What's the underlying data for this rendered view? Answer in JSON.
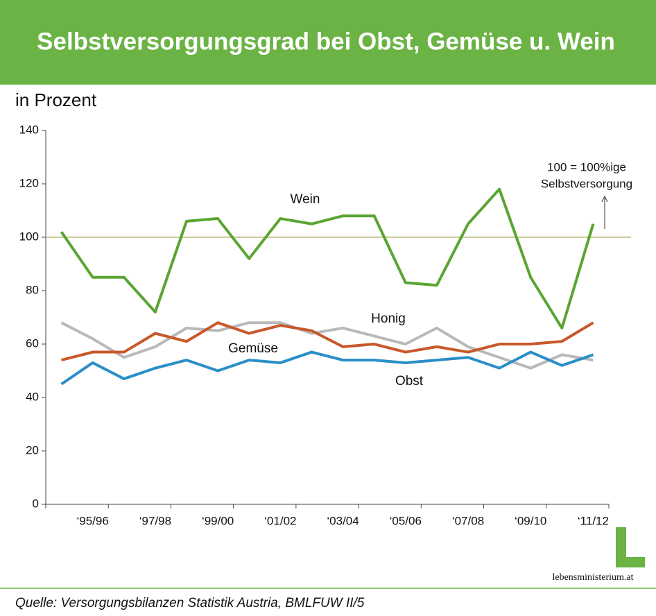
{
  "header": {
    "title": "Selbstversorgungsgrad bei Obst, Gemüse u. Wein"
  },
  "chart_data": {
    "type": "line",
    "subtitle": "in Prozent",
    "categories": [
      null,
      "‘95/96",
      null,
      "‘97/98",
      null,
      "‘99/00",
      null,
      "‘01/02",
      null,
      "‘03/04",
      null,
      "‘05/06",
      null,
      "‘07/08",
      null,
      "‘09/10",
      null,
      "‘11/12"
    ],
    "series": [
      {
        "name": "Wein",
        "color": "#5aa532",
        "values": [
          102,
          85,
          85,
          72,
          106,
          107,
          92,
          107,
          105,
          108,
          108,
          83,
          82,
          105,
          118,
          85,
          66,
          105
        ]
      },
      {
        "name": "Honig",
        "color": "#b9b9b9",
        "values": [
          68,
          62,
          55,
          59,
          66,
          65,
          68,
          68,
          64,
          66,
          63,
          60,
          66,
          59,
          55,
          51,
          56,
          54
        ]
      },
      {
        "name": "Gemüse",
        "color": "#c8582a",
        "values": [
          54,
          57,
          57,
          64,
          61,
          68,
          64,
          67,
          65,
          59,
          60,
          57,
          59,
          57,
          60,
          60,
          61,
          68
        ]
      },
      {
        "name": "Obst",
        "color": "#2a8fc8",
        "values": [
          45,
          53,
          47,
          51,
          54,
          50,
          54,
          53,
          57,
          54,
          54,
          53,
          54,
          55,
          51,
          57,
          52,
          56
        ]
      }
    ],
    "reference_line": {
      "value": 100,
      "color": "#cfc99a",
      "annotation": [
        "100 = 100%ige",
        "Selbstversorgung"
      ]
    },
    "ylim": [
      0,
      140
    ],
    "yticks": [
      0,
      20,
      40,
      60,
      80,
      100,
      120,
      140
    ]
  },
  "footer": {
    "source": "Quelle: Versorgungsbilanzen Statistik Austria, BMLFUW II/5",
    "logo": "lebensministerium.at"
  }
}
